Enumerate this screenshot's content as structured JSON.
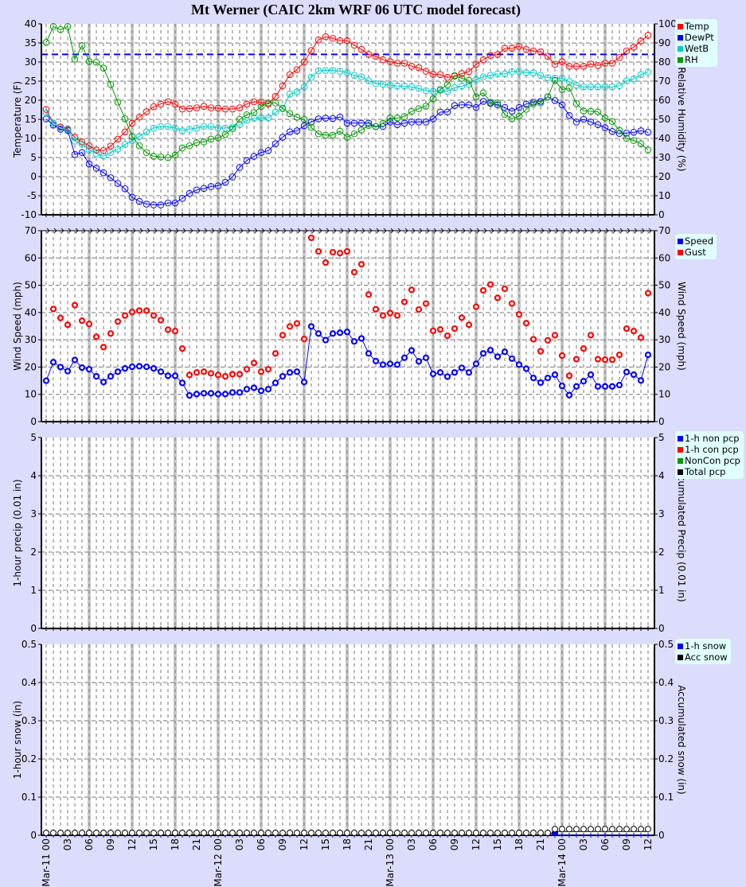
{
  "title": "Mt Werner (CAIC 2km WRF 06 UTC model forecast)",
  "x_tick_labels": [
    "Mar-11 00",
    "03",
    "06",
    "09",
    "12",
    "15",
    "18",
    "21",
    "Mar-12 00",
    "03",
    "06",
    "09",
    "12",
    "15",
    "18",
    "21",
    "Mar-13 00",
    "03",
    "06",
    "09",
    "12",
    "15",
    "18",
    "21",
    "Mar-14 00",
    "03",
    "06",
    "09",
    "12"
  ],
  "chart_data": [
    {
      "type": "line",
      "ylabel": "Temperature (F)",
      "y2label": "Relative Humidity (%)",
      "ylim": [
        -10,
        40
      ],
      "y2lim": [
        0,
        100
      ],
      "yticks": [
        "40",
        "35",
        "30",
        "25",
        "20",
        "15",
        "10",
        "5",
        "0",
        "-5",
        "-10"
      ],
      "y2ticks": [
        "100",
        "90",
        "80",
        "70",
        "60",
        "50",
        "40",
        "30",
        "20",
        "10",
        "0"
      ],
      "reference_line": {
        "value": 32,
        "color": "#0000ff",
        "style": "dashed"
      },
      "grid": true,
      "legend": "right",
      "series": [
        {
          "name": "Temp",
          "color": "#ff0000",
          "axis": "left",
          "values": [
            17.6,
            14,
            13,
            12.5,
            10.3,
            9.1,
            8.1,
            7,
            6.8,
            8,
            9.8,
            11.7,
            14,
            15.6,
            17,
            18.3,
            19,
            19.6,
            19,
            17.7,
            17.8,
            18,
            18.4,
            18,
            17.9,
            17.7,
            17.7,
            18,
            19,
            19.6,
            19.5,
            19,
            21,
            23.8,
            26.7,
            28,
            30,
            33,
            35.8,
            36.6,
            36.2,
            35.6,
            35.6,
            34.4,
            33.3,
            32,
            31.5,
            30.6,
            30.1,
            29.7,
            29.7,
            28.9,
            28.5,
            27.6,
            26.8,
            26.7,
            26,
            26.3,
            27,
            27.5,
            29.4,
            30.6,
            31.7,
            32,
            33.6,
            33.6,
            34.1,
            33.3,
            32.9,
            32.7,
            31.5,
            29.4,
            30.1,
            28.9,
            28.9,
            28.9,
            29.5,
            29.1,
            29.7,
            29.7,
            31.2,
            32.9,
            33.9,
            35.5,
            37
          ]
        },
        {
          "name": "DewPt",
          "color": "#0000ff",
          "axis": "left",
          "values": [
            15.1,
            13.5,
            12.4,
            12.1,
            5.8,
            6.3,
            3.3,
            2.2,
            1,
            -0.3,
            -1.8,
            -3.2,
            -5.4,
            -6.5,
            -7.2,
            -7.4,
            -7.4,
            -6.9,
            -6.9,
            -5.7,
            -4.4,
            -3.5,
            -3.1,
            -2.6,
            -2.4,
            -1.5,
            -0.1,
            2.4,
            4.2,
            5.3,
            6.3,
            6.8,
            8.6,
            10.3,
            11.7,
            12,
            13.3,
            14.3,
            15.1,
            15.3,
            15.2,
            15.6,
            14,
            14,
            14,
            14,
            13.1,
            13.1,
            14.3,
            13.6,
            14,
            14.3,
            14.3,
            14.3,
            15.1,
            16.9,
            16.9,
            18.6,
            18.8,
            18.8,
            18.1,
            19.7,
            19.2,
            18.8,
            18.1,
            17.1,
            18.1,
            19,
            19.5,
            19.7,
            20.9,
            19.9,
            18.8,
            16,
            14.3,
            15,
            14.3,
            13.6,
            12.8,
            11.8,
            11.3,
            11.4,
            11.6,
            12,
            11.6
          ]
        },
        {
          "name": "WetB",
          "color": "#00cccc",
          "axis": "left",
          "values": [
            16.7,
            14,
            12.8,
            12.3,
            9.3,
            8.5,
            7,
            6,
            5.4,
            6.3,
            7.2,
            8.4,
            9.4,
            10.5,
            11.7,
            12.7,
            13.1,
            13.1,
            12.7,
            12,
            12.4,
            12.7,
            13.1,
            13.1,
            12.7,
            12.7,
            13,
            13.6,
            14.7,
            15.3,
            15.4,
            15.4,
            16.9,
            17.8,
            21.6,
            22.2,
            23.5,
            26,
            27.7,
            27.8,
            27.8,
            27.6,
            27.2,
            26.5,
            26.1,
            25.1,
            24.4,
            24.2,
            23.9,
            23.7,
            23.7,
            23.5,
            23.1,
            22.5,
            22.3,
            22.6,
            22.3,
            23.3,
            23.7,
            24.2,
            25.4,
            26.1,
            26.5,
            26.9,
            26.9,
            27.5,
            27.5,
            27.2,
            27.2,
            26.5,
            25.9,
            25.8,
            25.8,
            24.9,
            23.9,
            23.5,
            23.5,
            23.5,
            23.5,
            23.5,
            23.8,
            25.1,
            25.6,
            26.7,
            27.4
          ]
        },
        {
          "name": "RH",
          "color": "#009900",
          "axis": "right",
          "values": [
            90.3,
            98.6,
            97,
            98.6,
            81.5,
            88.6,
            80.3,
            79.9,
            76.8,
            68.3,
            59,
            50.3,
            41,
            36.1,
            32.6,
            30.6,
            30.3,
            29.9,
            31.3,
            35,
            36.1,
            37.8,
            38.2,
            39.6,
            40.3,
            42.1,
            45.1,
            50,
            52.4,
            53.5,
            56.7,
            58.6,
            58.6,
            55.8,
            53,
            51.1,
            50,
            45.8,
            42.4,
            41.7,
            41.7,
            43.8,
            40.6,
            42.4,
            44.4,
            46.8,
            46.1,
            47.9,
            50.7,
            50.7,
            51.4,
            54.2,
            55.6,
            56.9,
            60.8,
            65.6,
            68.1,
            72.9,
            71.5,
            70.4,
            61.8,
            63.9,
            59,
            58.6,
            52.5,
            50.3,
            51.7,
            55.3,
            58.1,
            58.6,
            61.8,
            70.4,
            65.6,
            66.4,
            58.3,
            54.4,
            54.2,
            53.9,
            50.7,
            48.9,
            44.2,
            40,
            38.9,
            37.2,
            34
          ]
        }
      ]
    },
    {
      "type": "line",
      "ylabel": "Wind Speed (mph)",
      "y2label": "Wind Speed (mph)",
      "ylim": [
        0,
        70
      ],
      "y2lim": [
        0,
        70
      ],
      "yticks": [
        "70",
        "60",
        "50",
        "40",
        "30",
        "20",
        "10",
        "0"
      ],
      "y2ticks": [
        "70",
        "60",
        "50",
        "40",
        "30",
        "20",
        "10",
        "0"
      ],
      "grid": true,
      "legend": "right",
      "wind_direction_arrows": true,
      "series": [
        {
          "name": "Speed",
          "color": "#0000ff",
          "values": [
            15,
            21.8,
            20,
            18.5,
            22.6,
            19.8,
            19.2,
            16.6,
            14.5,
            16.6,
            18.3,
            19.5,
            20.1,
            20.3,
            20.1,
            19.5,
            18.3,
            16.8,
            16.8,
            14.2,
            9.6,
            10.1,
            10.4,
            10.4,
            10.1,
            10.1,
            10.7,
            10.7,
            11.9,
            12.4,
            11.3,
            11.9,
            14.2,
            16.6,
            18,
            18.3,
            14.5,
            34.9,
            32.3,
            29.9,
            32.3,
            32.6,
            32.9,
            29.4,
            30.5,
            25,
            22.2,
            20.9,
            21.2,
            20.9,
            23.4,
            26.1,
            22.1,
            23.4,
            17.5,
            18,
            16.5,
            18,
            19.7,
            18,
            21.2,
            25,
            26.2,
            23.8,
            25.6,
            23.1,
            20.9,
            19.4,
            16,
            14.3,
            16,
            17.2,
            13.1,
            9.7,
            12.9,
            14.8,
            17.2,
            12.9,
            12.9,
            12.9,
            13.4,
            18.2,
            17.2,
            15.1,
            24.5
          ]
        },
        {
          "name": "Gust",
          "color": "#ff0000",
          "values": [
            null,
            41.3,
            38,
            35.5,
            42.7,
            37,
            35.8,
            31.1,
            27.3,
            32.3,
            36.7,
            38.9,
            40.2,
            40.7,
            40.7,
            38.9,
            37.2,
            33.7,
            33.2,
            26.8,
            17.1,
            18,
            18.3,
            17.7,
            17.1,
            16.6,
            17.4,
            17.4,
            19.2,
            21.5,
            18.3,
            19.2,
            25,
            31.7,
            34.9,
            36,
            30.3,
            67.4,
            62.4,
            58.3,
            62.1,
            61.8,
            62.4,
            54.8,
            57.7,
            46.6,
            41.2,
            38.9,
            39.8,
            38.9,
            43.9,
            48.3,
            41.1,
            43.3,
            33.3,
            33.8,
            31.5,
            34.1,
            38.1,
            35.5,
            42.1,
            48.1,
            50.3,
            45.4,
            48.7,
            43.3,
            39.3,
            36.1,
            30.2,
            25.8,
            29.8,
            31.7,
            24.2,
            16.8,
            22.9,
            26.8,
            31.7,
            22.9,
            22.7,
            22.7,
            24.5,
            34.1,
            33.2,
            30.8,
            47.1
          ]
        }
      ]
    },
    {
      "type": "bar",
      "ylabel": "1-hour precip (0.01 in)",
      "y2label": "Accumulated Precip (0.01 in)",
      "ylim": [
        0,
        5
      ],
      "y2lim": [
        0,
        5
      ],
      "yticks": [
        "5",
        "4",
        "3",
        "2",
        "1",
        "0"
      ],
      "y2ticks": [
        "5",
        "4",
        "3",
        "2",
        "1",
        "0"
      ],
      "grid": true,
      "legend": "right",
      "series": [
        {
          "name": "1-h non pcp",
          "color": "#0000ff",
          "values": [
            0,
            0,
            0,
            0,
            0,
            0,
            0,
            0,
            0,
            0,
            0,
            0,
            0,
            0,
            0,
            0,
            0,
            0,
            0,
            0,
            0,
            0,
            0,
            0,
            0,
            0,
            0,
            0,
            0,
            0,
            0,
            0,
            0,
            0,
            0,
            0,
            0,
            0,
            0,
            0,
            0,
            0,
            0,
            0,
            0,
            0,
            0,
            0,
            0,
            0,
            0,
            0,
            0,
            0,
            0,
            0,
            0,
            0,
            0,
            0,
            0,
            0,
            0,
            0,
            0,
            0,
            0,
            0,
            0,
            0,
            0,
            0,
            0,
            0,
            0,
            0,
            0,
            0,
            0,
            0,
            0,
            0,
            0,
            0,
            0
          ]
        },
        {
          "name": "1-h con pcp",
          "color": "#ff0000",
          "values": [
            0,
            0,
            0,
            0,
            0,
            0,
            0,
            0,
            0,
            0,
            0,
            0,
            0,
            0,
            0,
            0,
            0,
            0,
            0,
            0,
            0,
            0,
            0,
            0,
            0,
            0,
            0,
            0,
            0,
            0,
            0,
            0,
            0,
            0,
            0,
            0,
            0,
            0,
            0,
            0,
            0,
            0,
            0,
            0,
            0,
            0,
            0,
            0,
            0,
            0,
            0,
            0,
            0,
            0,
            0,
            0,
            0,
            0,
            0,
            0,
            0,
            0,
            0,
            0,
            0,
            0,
            0,
            0,
            0,
            0,
            0,
            0,
            0,
            0,
            0,
            0,
            0,
            0,
            0,
            0,
            0,
            0,
            0,
            0,
            0
          ]
        },
        {
          "name": "NonCon pcp",
          "color": "#009900",
          "values": []
        },
        {
          "name": "Total pcp",
          "color": "#000000",
          "values": []
        }
      ]
    },
    {
      "type": "bar",
      "ylabel": "1-hour snow (in)",
      "y2label": "Accumulated snow (in)",
      "ylim": [
        0,
        0.5
      ],
      "y2lim": [
        0,
        0.5
      ],
      "yticks": [
        "0.5",
        "0.4",
        "0.3",
        "0.2",
        "0.1",
        "0"
      ],
      "y2ticks": [
        "0.5",
        "0.4",
        "0.3",
        "0.2",
        "0.1",
        "0"
      ],
      "grid": true,
      "legend": "right",
      "series": [
        {
          "name": "1-h snow",
          "color": "#0000ff",
          "values": [
            0,
            0,
            0,
            0,
            0,
            0,
            0,
            0,
            0,
            0,
            0,
            0,
            0,
            0,
            0,
            0,
            0,
            0,
            0,
            0,
            0,
            0,
            0,
            0,
            0,
            0,
            0,
            0,
            0,
            0,
            0,
            0,
            0,
            0,
            0,
            0,
            0,
            0,
            0,
            0,
            0,
            0,
            0,
            0,
            0,
            0,
            0,
            0,
            0,
            0,
            0,
            0,
            0,
            0,
            0,
            0,
            0,
            0,
            0,
            0,
            0,
            0,
            0,
            0,
            0,
            0,
            0,
            0,
            0,
            0,
            0,
            0.01,
            0,
            0,
            0,
            0,
            0,
            0,
            0,
            0,
            0,
            0,
            0,
            0,
            0
          ]
        },
        {
          "name": "Acc snow",
          "color": "#000000",
          "values": [
            0,
            0,
            0,
            0,
            0,
            0,
            0,
            0,
            0,
            0,
            0,
            0,
            0,
            0,
            0,
            0,
            0,
            0,
            0,
            0,
            0,
            0,
            0,
            0,
            0,
            0,
            0,
            0,
            0,
            0,
            0,
            0,
            0,
            0,
            0,
            0,
            0,
            0,
            0,
            0,
            0,
            0,
            0,
            0,
            0,
            0,
            0,
            0,
            0,
            0,
            0,
            0,
            0,
            0,
            0,
            0,
            0,
            0,
            0,
            0,
            0,
            0,
            0,
            0,
            0,
            0,
            0,
            0,
            0,
            0,
            0,
            0.01,
            0.01,
            0.01,
            0.01,
            0.01,
            0.01,
            0.01,
            0.01,
            0.01,
            0.01,
            0.01,
            0.01,
            0.01,
            0.01
          ]
        }
      ]
    }
  ]
}
